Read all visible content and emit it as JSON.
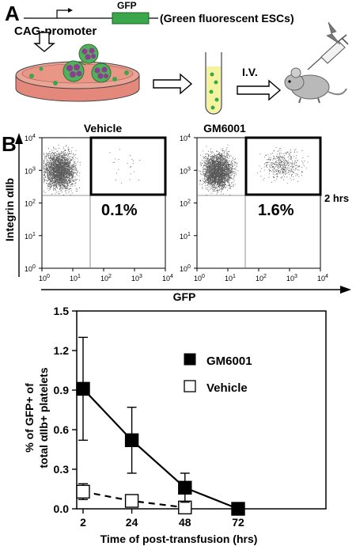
{
  "panel_a": {
    "label": "A",
    "gene_label": "GFP",
    "promoter_label": "CAG-promoter",
    "cell_label": "(Green fluorescent ESCs)",
    "route_label": "I.V.",
    "colors": {
      "gfp": "#3aa84a",
      "dish": "#e3887a",
      "colony": "#8a3f8f",
      "tube": "#f4f3a0",
      "mouse": "#b9b9b9"
    }
  },
  "panel_b": {
    "label": "B",
    "timepoint_label": "2 hrs",
    "y_axis_label": "Integrin αIIb",
    "x_axis_label": "GFP",
    "plots": [
      {
        "title": "Vehicle",
        "gate_percent": "0.1%"
      },
      {
        "title": "GM6001",
        "gate_percent": "1.6%"
      }
    ],
    "tick_labels": {
      "x": [
        {
          "base": "10",
          "exp": "0"
        },
        {
          "base": "10",
          "exp": "1"
        },
        {
          "base": "10",
          "exp": "2"
        },
        {
          "base": "10",
          "exp": "3"
        },
        {
          "base": "10",
          "exp": "4"
        }
      ],
      "y": [
        {
          "base": "10",
          "exp": "4"
        },
        {
          "base": "10",
          "exp": "3"
        },
        {
          "base": "10",
          "exp": "2"
        },
        {
          "base": "10",
          "exp": "1"
        },
        {
          "base": "10",
          "exp": "0"
        }
      ]
    }
  },
  "chart_data": {
    "type": "line",
    "xlabel": "Time of post-transfusion (hrs)",
    "ylabel_line1": "% of GFP+ of",
    "ylabel_line2": "total αIIb+ platelets",
    "x_ticks": [
      "2",
      "24",
      "48",
      "72"
    ],
    "y_ticks": [
      "1.5",
      "1.2",
      "0.9",
      "0.6",
      "0.3",
      "0.0"
    ],
    "ylim": [
      0,
      1.5
    ],
    "legend_position": "top-right",
    "series": [
      {
        "name": "GM6001",
        "marker": "filled-square",
        "line": "solid",
        "x": [
          2,
          24,
          48,
          72
        ],
        "y": [
          0.91,
          0.52,
          0.16,
          0.0
        ],
        "error": [
          0.39,
          0.25,
          0.11,
          0.0
        ]
      },
      {
        "name": "Vehicle",
        "marker": "open-square",
        "line": "dashed",
        "x": [
          2,
          24,
          48
        ],
        "y": [
          0.13,
          0.06,
          0.01
        ],
        "error": [
          0.06,
          0.0,
          0.0
        ]
      }
    ]
  }
}
